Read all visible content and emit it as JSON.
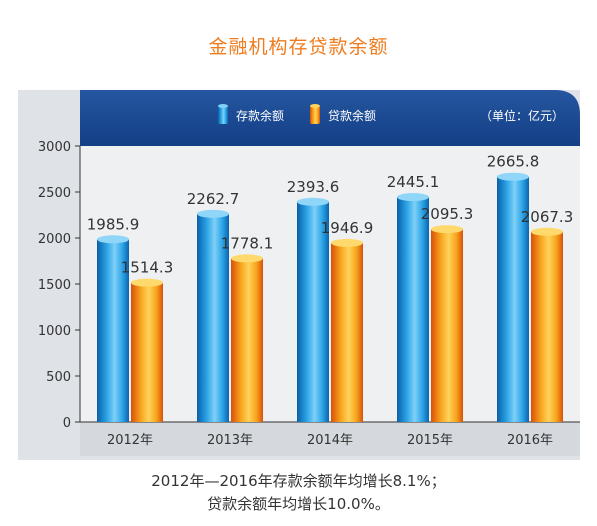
{
  "title": "金融机构存贷款余额",
  "unit": "（单位：亿元）",
  "footnote": [
    "2012年—2016年存款余额年均增长8.1%；",
    "贷款余额年均增长10.0%。"
  ],
  "colors": {
    "deposit": "#1e8fd5",
    "loan": "#f39800",
    "header": "#1a4b95",
    "plot": "#dde1e6"
  },
  "chart_data": {
    "type": "bar",
    "title": "金融机构存贷款余额",
    "categories": [
      "2012年",
      "2013年",
      "2014年",
      "2015年",
      "2016年"
    ],
    "series": [
      {
        "name": "存款余额",
        "values": [
          1985.9,
          2262.7,
          2393.6,
          2445.1,
          2665.8
        ]
      },
      {
        "name": "贷款余额",
        "values": [
          1514.3,
          1778.1,
          1946.9,
          2095.3,
          2067.3
        ]
      }
    ],
    "value_labels": [
      [
        "1985.9",
        "2262.7",
        "2393.6",
        "2445.1",
        "2665.8"
      ],
      [
        "1514.3",
        "1778.1",
        "1946.9",
        "2095.3",
        "2067.3"
      ]
    ],
    "yticks": [
      "0",
      "500",
      "1000",
      "1500",
      "2000",
      "2500",
      "3000"
    ],
    "ylim": [
      0,
      3000
    ],
    "legend_position": "top",
    "grid": false
  }
}
